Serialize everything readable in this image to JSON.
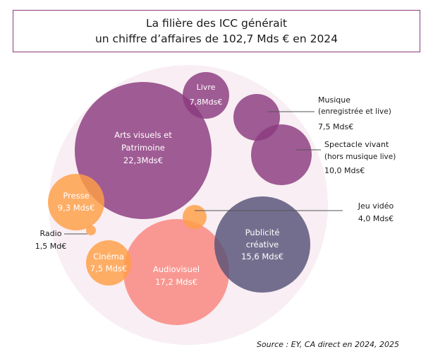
{
  "title": {
    "line1": "La filière des ICC générait",
    "line2": "un chiffre d’affaires de 102,7 Mds € en 2024"
  },
  "source": "Source : EY, CA direct en 2024, 2025",
  "colors": {
    "container": "#f8eef3",
    "plum": "#8b3a7f",
    "orange": "#ff9f45",
    "salmon": "#f9857c",
    "slate": "#575277",
    "leader": "#555555"
  },
  "chart_data": {
    "type": "bubble",
    "total": 102.7,
    "unit": "Mds €",
    "year": 2024,
    "series": [
      {
        "name": "Arts visuels et Patrimoine",
        "value": 22.3,
        "label": [
          "Arts visuels et",
          "Patrimoine",
          "22,3Mds€"
        ],
        "color": "#8b3a7f"
      },
      {
        "name": "Audiovisuel",
        "value": 17.2,
        "label": [
          "Audiovisuel",
          "17,2 Mds€"
        ],
        "color": "#f9857c"
      },
      {
        "name": "Publicité créative",
        "value": 15.6,
        "label": [
          "Publicité",
          "créative",
          "15,6 Mds€"
        ],
        "color": "#575277"
      },
      {
        "name": "Spectacle vivant (hors musique live)",
        "value": 10.0,
        "label": [
          "Spectacle vivant",
          "(hors musique live)",
          "10,0 Mds€"
        ],
        "color": "#8b3a7f"
      },
      {
        "name": "Presse",
        "value": 9.3,
        "label": [
          "Presse",
          "9,3 Mds€"
        ],
        "color": "#ff9f45"
      },
      {
        "name": "Livre",
        "value": 7.8,
        "label": [
          "Livre",
          "7,8Mds€"
        ],
        "color": "#8b3a7f"
      },
      {
        "name": "Musique (enregistrée et live)",
        "value": 7.5,
        "label": [
          "Musique",
          "(enregistrée et live)",
          "7,5 Mds€"
        ],
        "color": "#8b3a7f"
      },
      {
        "name": "Cinéma",
        "value": 7.5,
        "label": [
          "Cinéma",
          "7,5 Mds€"
        ],
        "color": "#ff9f45"
      },
      {
        "name": "Jeu vidéo",
        "value": 4.0,
        "label": [
          "Jeu vidéo",
          "4,0 Mds€"
        ],
        "color": "#ff9f45"
      },
      {
        "name": "Radio",
        "value": 1.5,
        "label": [
          "Radio",
          "1,5 Md€"
        ],
        "color": "#ff9f45"
      }
    ]
  }
}
